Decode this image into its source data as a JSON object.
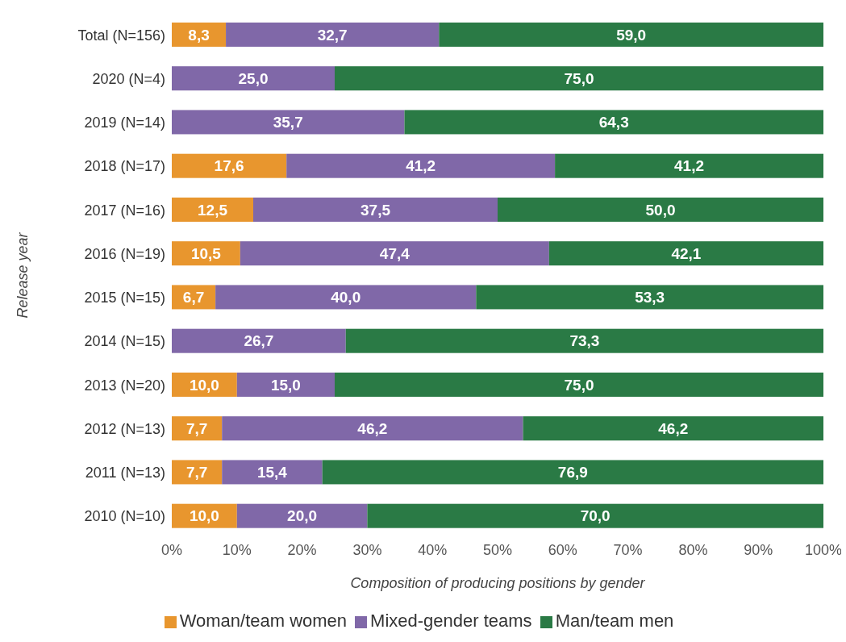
{
  "chart_data": {
    "type": "bar",
    "orientation": "horizontal",
    "stacked": true,
    "xlabel": "Composition of producing positions by gender",
    "ylabel": "Release year",
    "categories": [
      "Total (N=156)",
      "2020 (N=4)",
      "2019 (N=14)",
      "2018 (N=17)",
      "2017 (N=16)",
      "2016 (N=19)",
      "2015 (N=15)",
      "2014 (N=15)",
      "2013 (N=20)",
      "2012 (N=13)",
      "2011 (N=13)",
      "2010 (N=10)"
    ],
    "series": [
      {
        "name": "Woman/team women",
        "color": "#e8962e",
        "values": [
          8.3,
          0,
          0,
          17.6,
          12.5,
          10.5,
          6.7,
          0,
          10.0,
          7.7,
          7.7,
          10.0
        ],
        "value_labels": [
          "8,3",
          null,
          null,
          "17,6",
          "12,5",
          "10,5",
          "6,7",
          null,
          "10,0",
          "7,7",
          "7,7",
          "10,0"
        ]
      },
      {
        "name": "Mixed-gender teams",
        "color": "#8068a8",
        "values": [
          32.7,
          25.0,
          35.7,
          41.2,
          37.5,
          47.4,
          40.0,
          26.7,
          15.0,
          46.2,
          15.4,
          20.0
        ],
        "value_labels": [
          "32,7",
          "25,0",
          "35,7",
          "41,2",
          "37,5",
          "47,4",
          "40,0",
          "26,7",
          "15,0",
          "46,2",
          "15,4",
          "20,0"
        ]
      },
      {
        "name": "Man/team men",
        "color": "#2a7a45",
        "values": [
          59.0,
          75.0,
          64.3,
          41.2,
          50.0,
          42.1,
          53.3,
          73.3,
          75.0,
          46.2,
          76.9,
          70.0
        ],
        "value_labels": [
          "59,0",
          "75,0",
          "64,3",
          "41,2",
          "50,0",
          "42,1",
          "53,3",
          "73,3",
          "75,0",
          "46,2",
          "76,9",
          "70,0"
        ]
      }
    ],
    "xlim": [
      0,
      100
    ],
    "xticks": [
      {
        "value": 0,
        "label": "0%"
      },
      {
        "value": 10,
        "label": "10%"
      },
      {
        "value": 20,
        "label": "20%"
      },
      {
        "value": 30,
        "label": "30%"
      },
      {
        "value": 40,
        "label": "40%"
      },
      {
        "value": 50,
        "label": "50%"
      },
      {
        "value": 60,
        "label": "60%"
      },
      {
        "value": 70,
        "label": "70%"
      },
      {
        "value": 80,
        "label": "80%"
      },
      {
        "value": 90,
        "label": "90%"
      },
      {
        "value": 100,
        "label": "100%"
      }
    ],
    "grid": false,
    "legend": "bottom"
  }
}
